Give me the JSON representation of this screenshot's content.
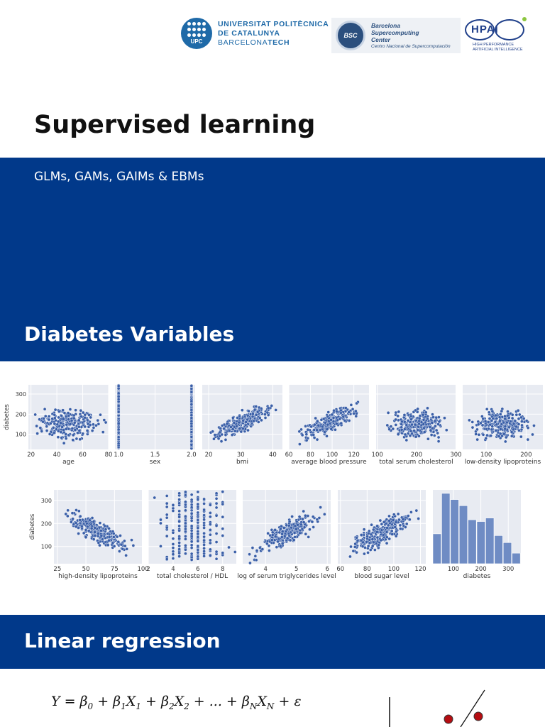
{
  "header": {
    "upc": {
      "mark_label": "UPC",
      "line1": "UNIVERSITAT POLITÈCNICA",
      "line2": "DE CATALUNYA",
      "line3_a": "BARCELONA",
      "line3_b": "TECH"
    },
    "bsc": {
      "mark_label": "BSC",
      "line1": "Barcelona",
      "line2": "Supercomputing",
      "line3": "Center",
      "line4": "Centro Nacional de Supercomputación"
    },
    "hpai": {
      "mark_label": "HPAI",
      "cap1": "HIGH PERFORMANCE",
      "cap2": "ARTIFICIAL INTELLIGENCE"
    }
  },
  "slide1": {
    "title": "Supervised learning",
    "subtitle": "GLMs, GAMs, GAIMs & EBMs"
  },
  "slide2": {
    "title": "Diabetes Variables",
    "y_label": "diabetes",
    "y_ticks": [
      100,
      200,
      300
    ]
  },
  "slide3": {
    "title": "Linear regression"
  },
  "colors": {
    "band": "#01398a",
    "point": "#3a5fa8",
    "panel": "#e8ebf2",
    "grid": "#ffffff",
    "red_dot": "#b50d12"
  },
  "chart_data": [
    {
      "type": "scatter",
      "xlabel": "age",
      "ylabel": "diabetes",
      "x_ticks": [
        20,
        40,
        60,
        80
      ],
      "xlim": [
        18,
        80
      ],
      "ylim": [
        25,
        346
      ],
      "pattern": "uniform",
      "series": [
        {
          "values": []
        }
      ]
    },
    {
      "type": "scatter",
      "xlabel": "sex",
      "x_ticks": [
        "1.0",
        "1.5",
        "2.0"
      ],
      "xlim": [
        0.95,
        2.05
      ],
      "ylim": [
        25,
        346
      ],
      "pattern": "binary",
      "series": [
        {
          "values": []
        }
      ]
    },
    {
      "type": "scatter",
      "xlabel": "bmi",
      "x_ticks": [
        20,
        30,
        40
      ],
      "xlim": [
        18,
        43
      ],
      "ylim": [
        25,
        346
      ],
      "pattern": "positive",
      "series": [
        {
          "values": []
        }
      ]
    },
    {
      "type": "scatter",
      "xlabel": "average blood pressure",
      "x_ticks": [
        60,
        80,
        100,
        120
      ],
      "xlim": [
        60,
        134
      ],
      "ylim": [
        25,
        346
      ],
      "pattern": "positive",
      "series": [
        {
          "values": []
        }
      ]
    },
    {
      "type": "scatter",
      "xlabel": "total serum cholesterol",
      "x_ticks": [
        100,
        200,
        300
      ],
      "xlim": [
        97,
        301
      ],
      "ylim": [
        25,
        346
      ],
      "pattern": "uniform",
      "series": [
        {
          "values": []
        }
      ]
    },
    {
      "type": "scatter",
      "xlabel": "low-density lipoproteins",
      "x_ticks": [
        100,
        200
      ],
      "xlim": [
        41,
        242
      ],
      "ylim": [
        25,
        346
      ],
      "pattern": "uniform",
      "series": [
        {
          "values": []
        }
      ]
    },
    {
      "type": "scatter",
      "xlabel": "high-density lipoproteins",
      "ylabel": "diabetes",
      "x_ticks": [
        25,
        50,
        75,
        100
      ],
      "xlim": [
        22,
        99
      ],
      "ylim": [
        25,
        346
      ],
      "pattern": "negative",
      "series": [
        {
          "values": []
        }
      ]
    },
    {
      "type": "scatter",
      "xlabel": "total cholesterol / HDL",
      "x_ticks": [
        2,
        4,
        6,
        8
      ],
      "xlim": [
        2,
        9.1
      ],
      "ylim": [
        25,
        346
      ],
      "pattern": "discrete",
      "series": [
        {
          "values": []
        }
      ]
    },
    {
      "type": "scatter",
      "xlabel": "log of serum triglycerides level",
      "x_ticks": [
        4,
        5,
        6
      ],
      "xlim": [
        3.26,
        6.11
      ],
      "ylim": [
        25,
        346
      ],
      "pattern": "positive",
      "series": [
        {
          "values": []
        }
      ]
    },
    {
      "type": "scatter",
      "xlabel": "blood sugar level",
      "x_ticks": [
        60,
        80,
        100,
        120
      ],
      "xlim": [
        58,
        124
      ],
      "ylim": [
        25,
        346
      ],
      "pattern": "positive",
      "series": [
        {
          "values": []
        }
      ]
    },
    {
      "type": "bar",
      "xlabel": "diabetes",
      "x_ticks": [
        100,
        200,
        300
      ],
      "xlim": [
        25,
        346
      ],
      "categories": [
        "25-57",
        "57-89",
        "89-121",
        "121-153",
        "153-185",
        "185-218",
        "218-250",
        "250-282",
        "282-314",
        "314-346"
      ],
      "values": [
        34,
        80,
        73,
        66,
        50,
        48,
        52,
        32,
        24,
        12
      ]
    }
  ],
  "formula": {
    "lhs": "Y",
    "eq": " = ",
    "b0": "β",
    "b0_sub": "0",
    "plus1": " + ",
    "b1": "β",
    "b1_sub": "1",
    "x1": "X",
    "x1_sub": "1",
    "plus2": " + ",
    "b2": "β",
    "b2_sub": "2",
    "x2": "X",
    "x2_sub": "2",
    "dots": " + ... + ",
    "bn": "β",
    "bn_sub": "N",
    "xn": "X",
    "xn_sub": "N",
    "plus3": " + ",
    "eps": "ε"
  }
}
